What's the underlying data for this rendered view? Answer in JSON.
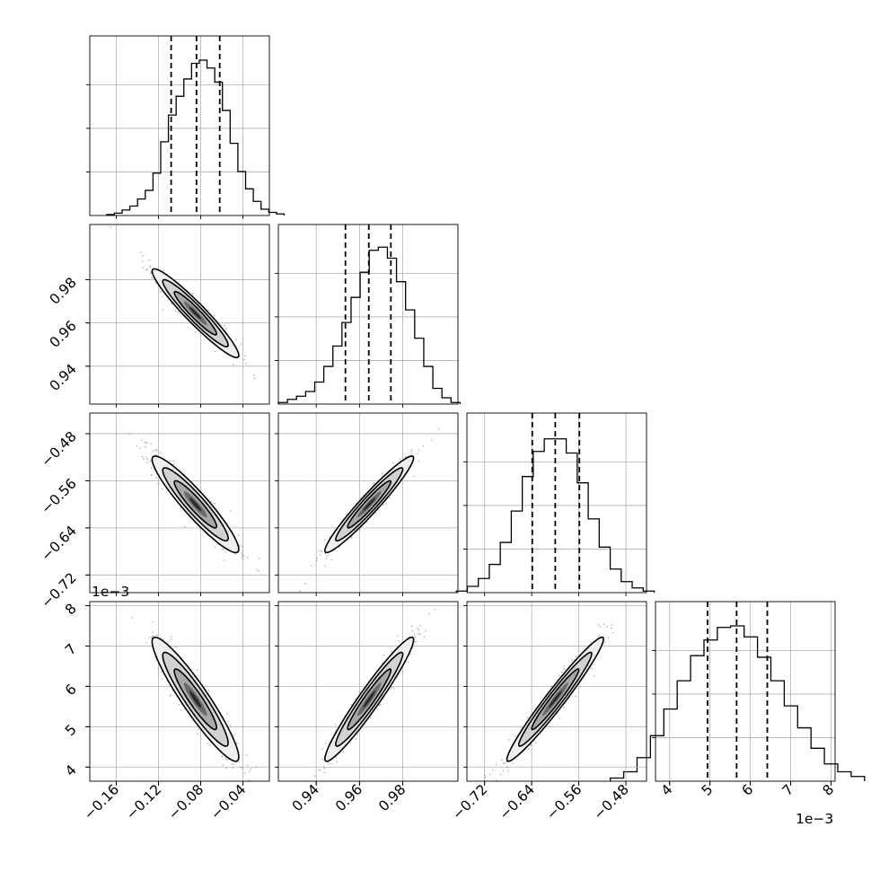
{
  "chart_data": {
    "type": "corner",
    "parameters": [
      {
        "range": [
          -0.185,
          -0.015
        ],
        "ticks": [
          -0.16,
          -0.12,
          -0.08,
          -0.04
        ],
        "tick_labels": [
          "−0.16",
          "−0.12",
          "−0.08",
          "−0.04"
        ],
        "quantiles": [
          -0.108,
          -0.084,
          -0.062
        ],
        "mean": -0.085,
        "sd": 0.02
      },
      {
        "range": [
          0.9225,
          1.0055
        ],
        "ticks": [
          0.94,
          0.96,
          0.98
        ],
        "tick_labels": [
          "0.94",
          "0.96",
          "0.98"
        ],
        "quantiles": [
          0.9535,
          0.9643,
          0.9745
        ],
        "mean": 0.9645,
        "sd": 0.01
      },
      {
        "range": [
          -0.75,
          -0.445
        ],
        "ticks": [
          -0.72,
          -0.64,
          -0.56,
          -0.48
        ],
        "tick_labels": [
          "−0.72",
          "−0.64",
          "−0.56",
          "−0.48"
        ],
        "quantiles": [
          -0.639,
          -0.6,
          -0.559
        ],
        "mean": -0.6,
        "sd": 0.04
      },
      {
        "range": [
          0.00365,
          0.0081
        ],
        "ticks": [
          0.004,
          0.005,
          0.006,
          0.007,
          0.008
        ],
        "tick_labels": [
          "4",
          "5",
          "6",
          "7",
          "8"
        ],
        "quantiles": [
          0.00494,
          0.00566,
          0.00642
        ],
        "mean": 0.00568,
        "sd": 0.00075
      }
    ],
    "offset_label": "1e−3",
    "histograms": [
      [
        0.6,
        1.5,
        3.5,
        6,
        10.5,
        16,
        27,
        47,
        64,
        76,
        87,
        97,
        99,
        94,
        85,
        67,
        46,
        28,
        17,
        9,
        4,
        2,
        1
      ],
      [
        1,
        3,
        5,
        8,
        14,
        24,
        37,
        52,
        68,
        84,
        98,
        100,
        93,
        78,
        60,
        42,
        24,
        10,
        4,
        1
      ],
      [
        1,
        4,
        9,
        18,
        32,
        52,
        74,
        90,
        98,
        98,
        89,
        70,
        47,
        29,
        15,
        7,
        3,
        1
      ],
      [
        2,
        6,
        15,
        29,
        46,
        64,
        80,
        90,
        98,
        99,
        92,
        79,
        64,
        48,
        34,
        21,
        11,
        6,
        3
      ]
    ],
    "correlations": [
      [
        1,
        -0.95,
        -0.93,
        -0.93
      ],
      [
        -0.95,
        1,
        0.96,
        0.96
      ],
      [
        -0.93,
        0.96,
        1,
        0.97
      ],
      [
        -0.93,
        0.96,
        0.97,
        1
      ]
    ],
    "grid": true,
    "quantile_lines": "dashed"
  }
}
